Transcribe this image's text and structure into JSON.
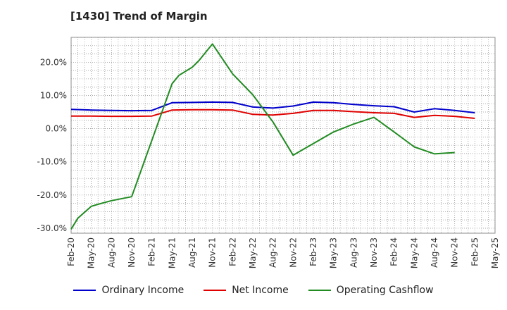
{
  "chart_data": {
    "type": "line",
    "title": "[1430]  Trend of Margin",
    "x_labels": [
      "Feb-20",
      "May-20",
      "Aug-20",
      "Nov-20",
      "Feb-21",
      "May-21",
      "Aug-21",
      "Nov-21",
      "Feb-22",
      "May-22",
      "Aug-22",
      "Nov-22",
      "Feb-23",
      "May-23",
      "Aug-23",
      "Nov-23",
      "Feb-24",
      "May-24",
      "Aug-24",
      "Nov-24",
      "Feb-25",
      "May-25"
    ],
    "y_ticks": [
      20.0,
      10.0,
      0.0,
      -10.0,
      -20.0,
      -30.0
    ],
    "y_tick_labels": [
      "20.0%",
      "10.0%",
      "0.0%",
      "-10.0%",
      "-20.0%",
      "-30.0%"
    ],
    "ylim": [
      -31.5,
      27.5
    ],
    "grid": true,
    "legend_position": "bottom",
    "series": [
      {
        "name": "Ordinary Income",
        "color": "#0000cc",
        "values": [
          5.8,
          5.6,
          5.5,
          5.4,
          5.5,
          7.8,
          7.9,
          8.0,
          7.9,
          6.5,
          6.2,
          6.8,
          8.0,
          7.8,
          7.3,
          6.9,
          6.6,
          5.0,
          6.0,
          5.5,
          4.8,
          null
        ]
      },
      {
        "name": "Net Income",
        "color": "#e00000",
        "values": [
          3.8,
          3.8,
          3.7,
          3.7,
          3.8,
          5.6,
          5.7,
          5.7,
          5.6,
          4.3,
          4.1,
          4.6,
          5.5,
          5.5,
          5.1,
          4.8,
          4.6,
          3.4,
          4.0,
          3.7,
          3.1,
          null
        ]
      },
      {
        "name": "Operating Cashflow",
        "color": "#228b22",
        "values": [
          -30.3,
          -23.4,
          -21.7,
          -20.5,
          -3.5,
          13.5,
          18.5,
          25.5,
          16.5,
          10.2,
          2.0,
          -8.0,
          -4.5,
          -1.0,
          1.4,
          3.4,
          -1.0,
          -5.5,
          -7.6,
          -7.2,
          null,
          null
        ],
        "extra_points": [
          [
            0.33,
            -27.0
          ],
          [
            1.33,
            -22.8
          ],
          [
            5.33,
            16.0
          ],
          [
            6.33,
            20.5
          ]
        ]
      }
    ]
  }
}
